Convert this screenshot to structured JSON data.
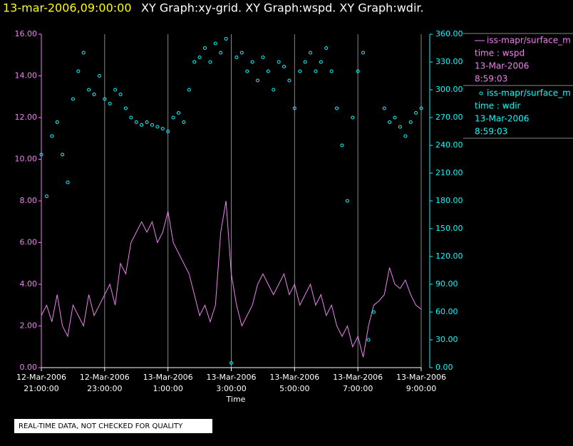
{
  "chart_data": {
    "type": "xy-graph",
    "title": "13-mar-2006,09:00:00",
    "subtitle": "XY Graph:xy-grid.  XY Graph:wspd.  XY Graph:wdir.",
    "x_label": "Time",
    "footer": "REAL-TIME DATA, NOT CHECKED FOR QUALITY",
    "grid": true,
    "xlim": [
      "2006-03-12T21:00",
      "2006-03-13T09:00"
    ],
    "xticks": [
      {
        "value": "2006-03-12T21:00",
        "label": [
          "12-Mar-2006",
          "21:00:00"
        ]
      },
      {
        "value": "2006-03-12T23:00",
        "label": [
          "12-Mar-2006",
          "23:00:00"
        ]
      },
      {
        "value": "2006-03-13T01:00",
        "label": [
          "13-Mar-2006",
          "1:00:00"
        ]
      },
      {
        "value": "2006-03-13T03:00",
        "label": [
          "13-Mar-2006",
          "3:00:00"
        ]
      },
      {
        "value": "2006-03-13T05:00",
        "label": [
          "13-Mar-2006",
          "5:00:00"
        ]
      },
      {
        "value": "2006-03-13T07:00",
        "label": [
          "13-Mar-2006",
          "7:00:00"
        ]
      },
      {
        "value": "2006-03-13T09:00",
        "label": [
          "13-Mar-2006",
          "9:00:00"
        ]
      }
    ],
    "ylim": [
      0,
      16
    ],
    "yticks": [
      {
        "value": 0,
        "label": "0.00"
      },
      {
        "value": 2,
        "label": "2.00"
      },
      {
        "value": 4,
        "label": "4.00"
      },
      {
        "value": 6,
        "label": "6.00"
      },
      {
        "value": 8,
        "label": "8.00"
      },
      {
        "value": 10,
        "label": "10.00"
      },
      {
        "value": 12,
        "label": "12.00"
      },
      {
        "value": 14,
        "label": "14.00"
      },
      {
        "value": 16,
        "label": "16.00"
      }
    ],
    "y2lim": [
      0,
      360
    ],
    "y2ticks": [
      {
        "value": 0,
        "label": "0.00"
      },
      {
        "value": 30,
        "label": "30.00"
      },
      {
        "value": 60,
        "label": "60.00"
      },
      {
        "value": 90,
        "label": "90.00"
      },
      {
        "value": 120,
        "label": "120.00"
      },
      {
        "value": 150,
        "label": "150.00"
      },
      {
        "value": 180,
        "label": "180.00"
      },
      {
        "value": 210,
        "label": "210.00"
      },
      {
        "value": 240,
        "label": "240.00"
      },
      {
        "value": 270,
        "label": "270.00"
      },
      {
        "value": 300,
        "label": "300.00"
      },
      {
        "value": 330,
        "label": "330.00"
      },
      {
        "value": 360,
        "label": "360.00"
      }
    ],
    "x": [
      "2006-03-12T21:00",
      "2006-03-12T21:10",
      "2006-03-12T21:20",
      "2006-03-12T21:30",
      "2006-03-12T21:40",
      "2006-03-12T21:50",
      "2006-03-12T22:00",
      "2006-03-12T22:10",
      "2006-03-12T22:20",
      "2006-03-12T22:30",
      "2006-03-12T22:40",
      "2006-03-12T22:50",
      "2006-03-12T23:00",
      "2006-03-12T23:10",
      "2006-03-12T23:20",
      "2006-03-12T23:30",
      "2006-03-12T23:40",
      "2006-03-12T23:50",
      "2006-03-13T00:00",
      "2006-03-13T00:10",
      "2006-03-13T00:20",
      "2006-03-13T00:30",
      "2006-03-13T00:40",
      "2006-03-13T00:50",
      "2006-03-13T01:00",
      "2006-03-13T01:10",
      "2006-03-13T01:20",
      "2006-03-13T01:30",
      "2006-03-13T01:40",
      "2006-03-13T01:50",
      "2006-03-13T02:00",
      "2006-03-13T02:10",
      "2006-03-13T02:20",
      "2006-03-13T02:30",
      "2006-03-13T02:40",
      "2006-03-13T02:50",
      "2006-03-13T03:00",
      "2006-03-13T03:10",
      "2006-03-13T03:20",
      "2006-03-13T03:30",
      "2006-03-13T03:40",
      "2006-03-13T03:50",
      "2006-03-13T04:00",
      "2006-03-13T04:10",
      "2006-03-13T04:20",
      "2006-03-13T04:30",
      "2006-03-13T04:40",
      "2006-03-13T04:50",
      "2006-03-13T05:00",
      "2006-03-13T05:10",
      "2006-03-13T05:20",
      "2006-03-13T05:30",
      "2006-03-13T05:40",
      "2006-03-13T05:50",
      "2006-03-13T06:00",
      "2006-03-13T06:10",
      "2006-03-13T06:20",
      "2006-03-13T06:30",
      "2006-03-13T06:40",
      "2006-03-13T06:50",
      "2006-03-13T07:00",
      "2006-03-13T07:10",
      "2006-03-13T07:20",
      "2006-03-13T07:30",
      "2006-03-13T07:40",
      "2006-03-13T07:50",
      "2006-03-13T08:00",
      "2006-03-13T08:10",
      "2006-03-13T08:20",
      "2006-03-13T08:30",
      "2006-03-13T08:40",
      "2006-03-13T08:50",
      "2006-03-13T09:00"
    ],
    "series": [
      {
        "name": "iss-mapr/surface_m",
        "legend_text": [
          "time : wspd",
          "13-Mar-2006",
          "8:59:03"
        ],
        "color": "#ee82ee",
        "axis": "y",
        "mark": "line",
        "values": [
          2.5,
          3.0,
          2.2,
          3.5,
          2.0,
          1.5,
          3.0,
          2.5,
          2.0,
          3.5,
          2.5,
          3.0,
          3.5,
          4.0,
          3.0,
          5.0,
          4.5,
          6.0,
          6.5,
          7.0,
          6.5,
          7.0,
          6.0,
          6.5,
          7.5,
          6.0,
          5.5,
          5.0,
          4.5,
          3.5,
          2.5,
          3.0,
          2.2,
          3.0,
          6.5,
          8.0,
          4.5,
          3.0,
          2.0,
          2.5,
          3.0,
          4.0,
          4.5,
          4.0,
          3.5,
          4.0,
          4.5,
          3.5,
          4.0,
          3.0,
          3.5,
          4.0,
          3.0,
          3.5,
          2.5,
          3.0,
          2.0,
          1.5,
          2.0,
          1.0,
          1.5,
          0.5,
          2.0,
          3.0,
          3.2,
          3.5,
          4.8,
          4.0,
          3.8,
          4.2,
          3.5,
          3.0,
          2.8
        ]
      },
      {
        "name": "iss-mapr/surface_m",
        "legend_text": [
          "time : wdir",
          "13-Mar-2006",
          "8:59:03"
        ],
        "color": "#00ffff",
        "axis": "y2",
        "mark": "circle",
        "values": [
          230,
          185,
          250,
          265,
          230,
          200,
          290,
          320,
          340,
          300,
          295,
          315,
          290,
          285,
          300,
          295,
          280,
          270,
          265,
          262,
          265,
          262,
          260,
          258,
          255,
          270,
          275,
          265,
          300,
          330,
          335,
          345,
          330,
          350,
          340,
          355,
          5,
          335,
          340,
          320,
          330,
          310,
          335,
          320,
          300,
          330,
          325,
          310,
          280,
          320,
          330,
          340,
          320,
          330,
          345,
          320,
          280,
          240,
          180,
          270,
          320,
          340,
          30,
          60,
          null,
          280,
          265,
          270,
          260,
          250,
          265,
          275,
          280
        ]
      }
    ]
  }
}
